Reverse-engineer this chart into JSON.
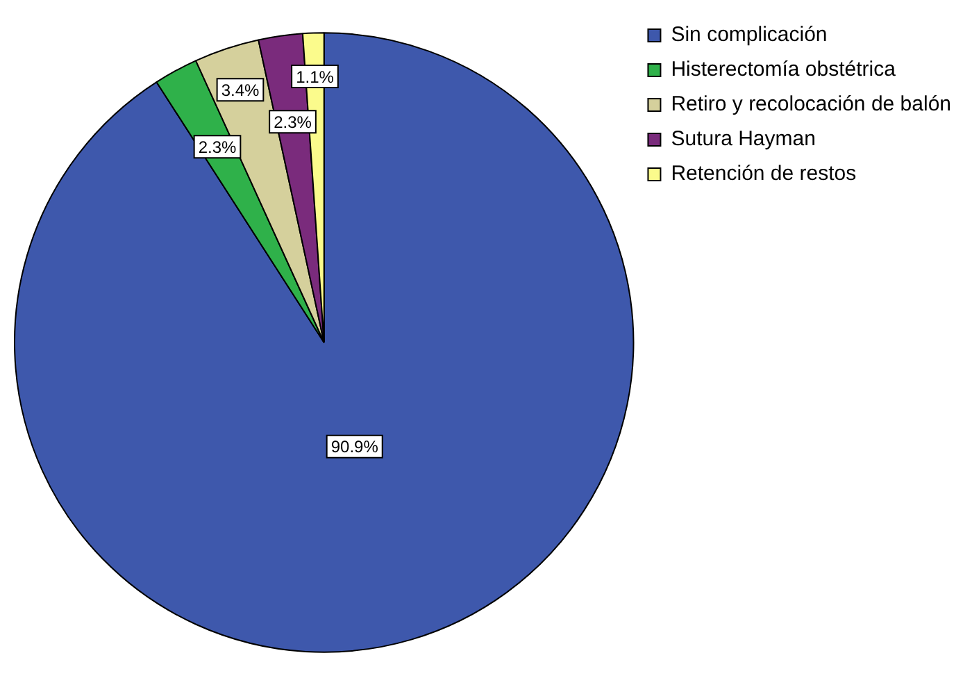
{
  "chart_data": {
    "type": "pie",
    "categories": [
      "Sin complicación",
      "Histerectomía obstétrica",
      "Retiro y recolocación de balón",
      "Sutura Hayman",
      "Retención de restos"
    ],
    "values": [
      90.9,
      2.3,
      3.4,
      2.3,
      1.1
    ],
    "colors": [
      "#3e58ac",
      "#2fb14a",
      "#d5d09c",
      "#7a2b7c",
      "#fbfb8c"
    ],
    "value_labels": [
      "90.9%",
      "2.3%",
      "3.4%",
      "2.3%",
      "1.1%"
    ],
    "legend": "top right"
  }
}
